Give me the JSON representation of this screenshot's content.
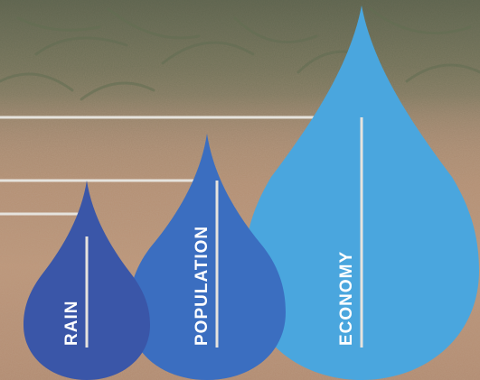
{
  "drops": [
    {
      "id": "rain",
      "label": "RAIN",
      "color": "#3a56a8"
    },
    {
      "id": "population",
      "label": "POPULATION",
      "color": "#3b6ec0"
    },
    {
      "id": "economy",
      "label": "ECONOMY",
      "color": "#4aa6de"
    }
  ],
  "colors": {
    "connector": "#e6e3dd",
    "label": "#ffffff"
  }
}
